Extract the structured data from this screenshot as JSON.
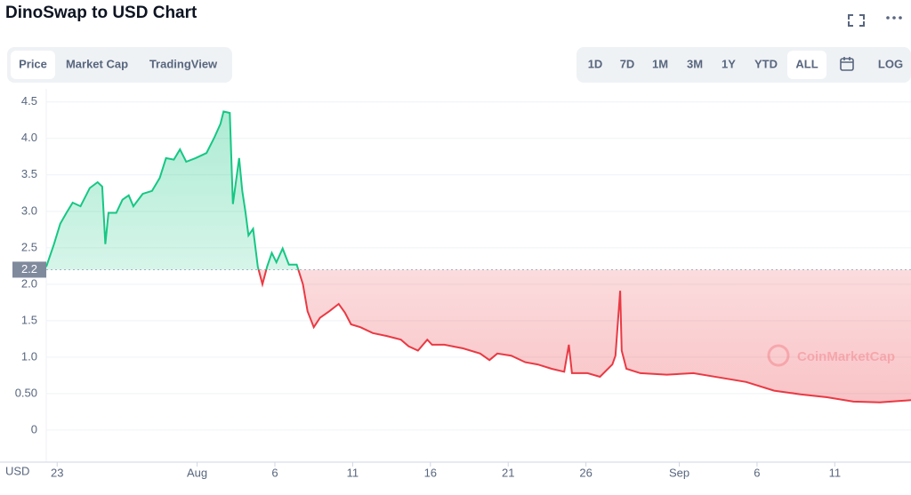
{
  "header": {
    "title": "DinoSwap to USD Chart"
  },
  "tabs": [
    "Price",
    "Market Cap",
    "TradingView"
  ],
  "ranges": [
    "1D",
    "7D",
    "1M",
    "3M",
    "1Y",
    "YTD",
    "ALL"
  ],
  "log_button": "LOG",
  "watermark": "CoinMarketCap",
  "chart_data": {
    "type": "area",
    "ylabel": "USD",
    "up_color": "#16c784",
    "down_color": "#ea3943",
    "grid": true,
    "reference_line": {
      "value": 2.2,
      "label": "2.2"
    },
    "x": [
      -0.7,
      -0.2,
      0.2,
      0.6,
      1.0,
      1.5,
      2.1,
      2.6,
      2.9,
      3.1,
      3.3,
      3.8,
      4.2,
      4.6,
      4.9,
      5.5,
      6.1,
      6.6,
      7.0,
      7.5,
      7.9,
      8.3,
      8.9,
      9.6,
      10.1,
      10.5,
      10.7,
      11.1,
      11.3,
      11.7,
      11.9,
      12.1,
      12.3,
      12.6,
      12.9,
      13.2,
      13.5,
      13.8,
      14.1,
      14.5,
      14.9,
      15.4,
      15.8,
      16.1,
      16.5,
      16.9,
      17.5,
      18.1,
      18.5,
      18.9,
      19.5,
      20.3,
      21.2,
      22.1,
      22.6,
      23.2,
      23.8,
      24.1,
      24.9,
      26.1,
      27.2,
      27.8,
      28.3,
      29.2,
      30.1,
      30.9,
      31.8,
      32.6,
      32.9,
      33.1,
      34.1,
      34.9,
      35.7,
      35.9,
      36.2,
      36.3,
      36.6,
      37.5,
      39.2,
      40.9,
      42.6,
      44.3,
      46.1,
      47.8,
      49.5,
      51.2,
      52.9,
      54.9
    ],
    "values": [
      2.24,
      2.55,
      2.83,
      2.98,
      3.12,
      3.07,
      3.32,
      3.4,
      3.34,
      2.55,
      2.98,
      2.98,
      3.16,
      3.22,
      3.07,
      3.24,
      3.28,
      3.46,
      3.73,
      3.71,
      3.85,
      3.68,
      3.73,
      3.8,
      4.01,
      4.2,
      4.37,
      4.35,
      3.1,
      3.73,
      3.28,
      3.0,
      2.67,
      2.76,
      2.24,
      2.0,
      2.24,
      2.43,
      2.3,
      2.49,
      2.27,
      2.27,
      2.0,
      1.63,
      1.41,
      1.54,
      1.63,
      1.73,
      1.61,
      1.45,
      1.41,
      1.33,
      1.29,
      1.24,
      1.15,
      1.09,
      1.24,
      1.17,
      1.17,
      1.12,
      1.05,
      0.96,
      1.05,
      1.02,
      0.93,
      0.9,
      0.84,
      0.8,
      1.17,
      0.78,
      0.78,
      0.73,
      0.9,
      1.02,
      1.91,
      1.09,
      0.84,
      0.78,
      0.76,
      0.78,
      0.72,
      0.66,
      0.54,
      0.49,
      0.45,
      0.39,
      0.38,
      0.41
    ],
    "xlim": [
      -0.7,
      54.9
    ],
    "ylim": [
      -0.44,
      4.68
    ],
    "xticks": [
      {
        "value": 0,
        "label": "23"
      },
      {
        "value": 9,
        "label": "Aug"
      },
      {
        "value": 14,
        "label": "6"
      },
      {
        "value": 19,
        "label": "11"
      },
      {
        "value": 24,
        "label": "16"
      },
      {
        "value": 29,
        "label": "21"
      },
      {
        "value": 34,
        "label": "26"
      },
      {
        "value": 40,
        "label": "Sep"
      },
      {
        "value": 45,
        "label": "6"
      },
      {
        "value": 50,
        "label": "11"
      }
    ],
    "yticks": [
      0,
      {
        "value": 0.5,
        "label": "0.50"
      },
      {
        "value": 1,
        "label": "1.0"
      },
      1.5,
      {
        "value": 2,
        "label": "2.0"
      },
      2.5,
      {
        "value": 3,
        "label": "3.0"
      },
      3.5,
      {
        "value": 4,
        "label": "4.0"
      },
      4.5
    ]
  }
}
